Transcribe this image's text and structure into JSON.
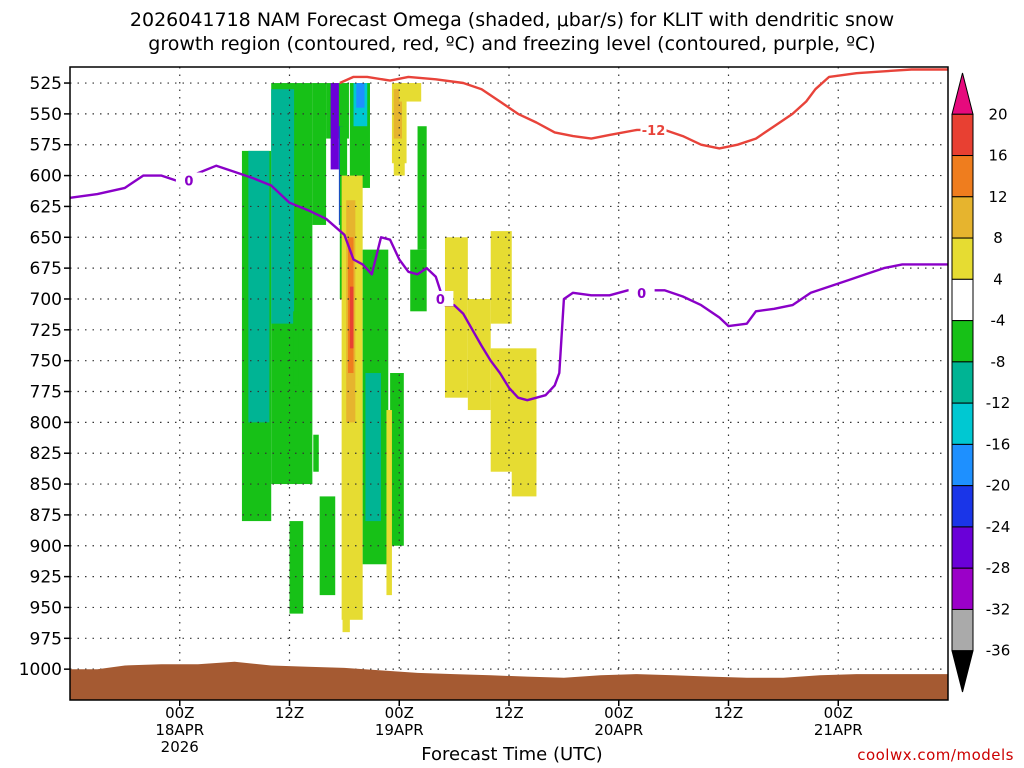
{
  "title_line1": "2026041718 NAM Forecast Omega (shaded, μbar/s) for KLIT with dendritic snow",
  "title_line2": "growth region (contoured, red, ºC) and freezing level (contoured, purple, ºC)",
  "credit": "coolwx.com/models",
  "chart_data": {
    "type": "heatmap",
    "title": "2026041718 NAM Forecast Omega (shaded, μbar/s) for KLIT with dendritic snow growth region (contoured, red, ºC) and freezing level (contoured, purple, ºC)",
    "xlabel": "Forecast Time (UTC)",
    "ylabel": "",
    "y_axis": {
      "reversed": true,
      "ylim": [
        1025,
        512
      ],
      "ticks": [
        525,
        550,
        575,
        600,
        625,
        650,
        675,
        700,
        725,
        750,
        775,
        800,
        825,
        850,
        875,
        900,
        925,
        950,
        975,
        1000
      ]
    },
    "x_axis": {
      "xlim_hours": [
        -12,
        84
      ],
      "ticks": [
        {
          "h": 0,
          "lines": [
            "00Z",
            "18APR",
            "2026"
          ]
        },
        {
          "h": 12,
          "lines": [
            "12Z"
          ]
        },
        {
          "h": 24,
          "lines": [
            "00Z",
            "19APR"
          ]
        },
        {
          "h": 36,
          "lines": [
            "12Z"
          ]
        },
        {
          "h": 48,
          "lines": [
            "00Z",
            "20APR"
          ]
        },
        {
          "h": 60,
          "lines": [
            "12Z"
          ]
        },
        {
          "h": 72,
          "lines": [
            "00Z",
            "21APR"
          ]
        }
      ]
    },
    "grid": true,
    "colorbar": {
      "levels": [
        -36,
        -32,
        -28,
        -24,
        -20,
        -16,
        -12,
        -8,
        -4,
        4,
        8,
        12,
        16,
        20
      ],
      "colors": [
        "#000000",
        "#aaaaaa",
        "#9b00c8",
        "#6a00d8",
        "#1a35e8",
        "#1e90ff",
        "#00c8d2",
        "#00b494",
        "#17c117",
        "#ffffff",
        "#e6dc32",
        "#e6b42e",
        "#ef7d1e",
        "#e84032",
        "#e60a7d"
      ]
    },
    "colors": {
      "snow_growth": "#e8433a",
      "freezing": "#8a00c8",
      "terrain": "#a55a32",
      "grid": "#333333"
    },
    "shaded_regions": [
      {
        "value": -6,
        "t": [
          6.8,
          10.0
        ],
        "p": [
          580,
          880
        ]
      },
      {
        "value": -6,
        "t": [
          10.0,
          14.5
        ],
        "p": [
          525,
          850
        ]
      },
      {
        "value": -6,
        "t": [
          14.5,
          16.0
        ],
        "p": [
          525,
          640
        ]
      },
      {
        "value": -6,
        "t": [
          16.0,
          18.5
        ],
        "p": [
          525,
          570
        ]
      },
      {
        "value": -10,
        "t": [
          7.5,
          9.8
        ],
        "p": [
          580,
          800
        ]
      },
      {
        "value": -10,
        "t": [
          10.0,
          12.5
        ],
        "p": [
          530,
          720
        ]
      },
      {
        "value": -6,
        "t": [
          12.4,
          13.0
        ],
        "p": [
          710,
          770
        ]
      },
      {
        "value": -6,
        "t": [
          12.0,
          13.5
        ],
        "p": [
          880,
          955
        ]
      },
      {
        "value": -6,
        "t": [
          14.6,
          15.2
        ],
        "p": [
          810,
          840
        ]
      },
      {
        "value": -6,
        "t": [
          15.3,
          17.0
        ],
        "p": [
          860,
          940
        ]
      },
      {
        "value": -6,
        "t": [
          18.6,
          20.8
        ],
        "p": [
          525,
          610
        ]
      },
      {
        "value": -14,
        "t": [
          19.0,
          20.5
        ],
        "p": [
          525,
          560
        ]
      },
      {
        "value": -18,
        "t": [
          19.3,
          20.2
        ],
        "p": [
          525,
          545
        ]
      },
      {
        "value": -26,
        "t": [
          16.5,
          17.4
        ],
        "p": [
          525,
          595
        ]
      },
      {
        "value": -22,
        "t": [
          17.4,
          17.8
        ],
        "p": [
          560,
          640
        ]
      },
      {
        "value": -6,
        "t": [
          17.5,
          18.3
        ],
        "p": [
          560,
          700
        ]
      },
      {
        "value": 6,
        "t": [
          17.7,
          20.0
        ],
        "p": [
          600,
          960
        ]
      },
      {
        "value": 10,
        "t": [
          18.2,
          19.2
        ],
        "p": [
          620,
          800
        ]
      },
      {
        "value": 14,
        "t": [
          18.4,
          19.0
        ],
        "p": [
          650,
          760
        ]
      },
      {
        "value": 18,
        "t": [
          18.6,
          19.0
        ],
        "p": [
          690,
          740
        ]
      },
      {
        "value": 6,
        "t": [
          17.8,
          18.6
        ],
        "p": [
          900,
          970
        ]
      },
      {
        "value": -6,
        "t": [
          20.0,
          22.8
        ],
        "p": [
          660,
          915
        ]
      },
      {
        "value": -10,
        "t": [
          20.3,
          22.0
        ],
        "p": [
          760,
          880
        ]
      },
      {
        "value": -6,
        "t": [
          23.0,
          24.5
        ],
        "p": [
          760,
          900
        ]
      },
      {
        "value": -6,
        "t": [
          25.2,
          27.0
        ],
        "p": [
          660,
          710
        ]
      },
      {
        "value": -6,
        "t": [
          26.0,
          27.0
        ],
        "p": [
          560,
          660
        ]
      },
      {
        "value": 6,
        "t": [
          22.6,
          23.2
        ],
        "p": [
          790,
          940
        ]
      },
      {
        "value": 6,
        "t": [
          23.2,
          24.8
        ],
        "p": [
          525,
          590
        ]
      },
      {
        "value": 10,
        "t": [
          23.4,
          24.3
        ],
        "p": [
          530,
          570
        ]
      },
      {
        "value": 6,
        "t": [
          24.0,
          26.4
        ],
        "p": [
          525,
          540
        ]
      },
      {
        "value": 6,
        "t": [
          23.4,
          24.6
        ],
        "p": [
          580,
          600
        ]
      },
      {
        "value": 6,
        "t": [
          29.0,
          31.5
        ],
        "p": [
          650,
          780
        ]
      },
      {
        "value": 6,
        "t": [
          31.5,
          34.0
        ],
        "p": [
          700,
          790
        ]
      },
      {
        "value": 6,
        "t": [
          34.0,
          36.3
        ],
        "p": [
          645,
          720
        ]
      },
      {
        "value": 6,
        "t": [
          34.0,
          39.0
        ],
        "p": [
          740,
          840
        ]
      },
      {
        "value": 6,
        "t": [
          36.3,
          39.0
        ],
        "p": [
          760,
          860
        ]
      }
    ],
    "snow_growth_contour": {
      "label": "-12",
      "points": [
        [
          17.5,
          525
        ],
        [
          19.0,
          520
        ],
        [
          20.5,
          520
        ],
        [
          23.0,
          523
        ],
        [
          25.0,
          520
        ],
        [
          28.0,
          522
        ],
        [
          31.0,
          525
        ],
        [
          33.0,
          530
        ],
        [
          35.0,
          540
        ],
        [
          37.0,
          550
        ],
        [
          39.0,
          557
        ],
        [
          41.0,
          565
        ],
        [
          43.0,
          568
        ],
        [
          45.0,
          570
        ],
        [
          47.0,
          567
        ],
        [
          50.0,
          563
        ],
        [
          53.0,
          563
        ],
        [
          55.0,
          568
        ],
        [
          57.0,
          575
        ],
        [
          59.0,
          578
        ],
        [
          61.0,
          575
        ],
        [
          63.0,
          570
        ],
        [
          65.0,
          560
        ],
        [
          67.0,
          550
        ],
        [
          68.5,
          540
        ],
        [
          69.5,
          530
        ],
        [
          71.0,
          520
        ],
        [
          74.0,
          517
        ],
        [
          76.0,
          516
        ],
        [
          78.0,
          515
        ],
        [
          80.0,
          514
        ],
        [
          84.0,
          514
        ]
      ]
    },
    "freezing_contour": {
      "label": "0",
      "points": [
        [
          -12,
          618
        ],
        [
          -9,
          615
        ],
        [
          -6,
          610
        ],
        [
          -4,
          600
        ],
        [
          -2,
          600
        ],
        [
          0,
          605
        ],
        [
          2,
          598
        ],
        [
          4,
          592
        ],
        [
          6,
          597
        ],
        [
          8,
          602
        ],
        [
          10,
          608
        ],
        [
          12,
          622
        ],
        [
          14,
          628
        ],
        [
          16,
          635
        ],
        [
          18,
          648
        ],
        [
          19,
          668
        ],
        [
          20,
          672
        ],
        [
          21,
          680
        ],
        [
          22,
          650
        ],
        [
          23,
          652
        ],
        [
          24,
          668
        ],
        [
          25,
          678
        ],
        [
          26,
          680
        ],
        [
          27,
          675
        ],
        [
          28,
          682
        ],
        [
          29,
          705
        ],
        [
          30,
          705
        ],
        [
          31,
          712
        ],
        [
          32,
          725
        ],
        [
          33,
          738
        ],
        [
          34,
          750
        ],
        [
          35,
          760
        ],
        [
          36,
          772
        ],
        [
          37,
          780
        ],
        [
          38,
          782
        ],
        [
          40,
          778
        ],
        [
          41,
          770
        ],
        [
          41.5,
          760
        ],
        [
          42,
          700
        ],
        [
          43,
          695
        ],
        [
          45,
          697
        ],
        [
          47,
          697
        ],
        [
          49,
          693
        ],
        [
          51,
          693
        ],
        [
          53,
          693
        ],
        [
          55,
          698
        ],
        [
          57,
          705
        ],
        [
          59,
          715
        ],
        [
          60,
          722
        ],
        [
          62,
          720
        ],
        [
          63,
          710
        ],
        [
          65,
          708
        ],
        [
          67,
          705
        ],
        [
          69,
          695
        ],
        [
          71,
          690
        ],
        [
          73,
          685
        ],
        [
          75,
          680
        ],
        [
          77,
          675
        ],
        [
          79,
          672
        ],
        [
          81,
          672
        ],
        [
          84,
          672
        ]
      ]
    },
    "terrain": {
      "points": [
        [
          -12,
          1000
        ],
        [
          -9,
          1000
        ],
        [
          -6,
          997
        ],
        [
          -2,
          996
        ],
        [
          2,
          996
        ],
        [
          6,
          994
        ],
        [
          10,
          997
        ],
        [
          14,
          998
        ],
        [
          18,
          999
        ],
        [
          22,
          1001
        ],
        [
          26,
          1003
        ],
        [
          30,
          1004
        ],
        [
          34,
          1005
        ],
        [
          38,
          1006
        ],
        [
          42,
          1007
        ],
        [
          46,
          1005
        ],
        [
          50,
          1004
        ],
        [
          54,
          1005
        ],
        [
          58,
          1006
        ],
        [
          62,
          1007
        ],
        [
          66,
          1007
        ],
        [
          70,
          1005
        ],
        [
          74,
          1004
        ],
        [
          78,
          1004
        ],
        [
          84,
          1004
        ]
      ]
    }
  }
}
